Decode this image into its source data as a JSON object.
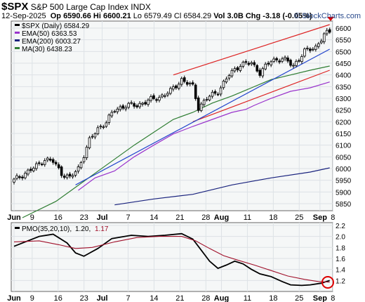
{
  "header": {
    "symbol": "$SPX",
    "name": "S&P 500 Large Cap Index",
    "exchange": "INDX",
    "date": "12-Sep-2025",
    "open": "Op 6590.66",
    "high": "Hi 6600.21",
    "low": "Lo 6579.49",
    "close": "Cl 6584.29",
    "volume": "Vol 3.0B",
    "change": "Chg -3.18 (-0.05%)",
    "copyright": "© StockCharts.com"
  },
  "chart_data": [
    {
      "type": "candlestick",
      "legend": [
        {
          "label": "$SPX (Daily) 6584.29",
          "color": "#000000"
        },
        {
          "label": "EMA(50) 6363.53",
          "color": "#9933cc"
        },
        {
          "label": "EMA(200) 6003.27",
          "color": "#1a237e"
        },
        {
          "label": "MA(30) 6438.23",
          "color": "#2e7d32"
        }
      ],
      "ylim": [
        5820,
        6630
      ],
      "yticks": [
        5850,
        5900,
        5950,
        6000,
        6050,
        6100,
        6150,
        6200,
        6250,
        6300,
        6350,
        6400,
        6450,
        6500,
        6550,
        6600
      ],
      "xticks": [
        "Jun",
        "9",
        "16",
        "23",
        "Jul",
        "7",
        "14",
        "21",
        "28",
        "Aug",
        "11",
        "18",
        "25",
        "Sep",
        "8"
      ],
      "last_value": 6584.29,
      "series": [
        {
          "name": "EMA(50)",
          "color": "#9933cc",
          "values": [
            [
              23,
              5907
            ],
            [
              29,
              5960
            ],
            [
              36,
              5990
            ],
            [
              43,
              6050
            ],
            [
              50,
              6100
            ],
            [
              57,
              6148
            ],
            [
              64,
              6180
            ],
            [
              71,
              6210
            ],
            [
              78,
              6240
            ],
            [
              83,
              6253
            ],
            [
              86,
              6270
            ],
            [
              92,
              6300
            ],
            [
              99,
              6330
            ],
            [
              106,
              6345
            ],
            [
              113,
              6370
            ]
          ]
        },
        {
          "name": "EMA(200)",
          "color": "#1a237e",
          "values": [
            [
              36,
              5845
            ],
            [
              50,
              5870
            ],
            [
              64,
              5890
            ],
            [
              78,
              5930
            ],
            [
              92,
              5960
            ],
            [
              106,
              5985
            ],
            [
              113,
              6003
            ]
          ]
        },
        {
          "name": "MA(30)",
          "color": "#2e7d32",
          "values": [
            [
              3,
              5790
            ],
            [
              15,
              5860
            ],
            [
              29,
              5980
            ],
            [
              43,
              6100
            ],
            [
              57,
              6210
            ],
            [
              64,
              6240
            ],
            [
              71,
              6280
            ],
            [
              78,
              6310
            ],
            [
              85,
              6345
            ],
            [
              92,
              6380
            ],
            [
              99,
              6400
            ],
            [
              106,
              6420
            ],
            [
              113,
              6438
            ]
          ]
        }
      ],
      "trendlines": [
        {
          "color": "#dd2222",
          "points": [
            [
              57,
              6400
            ],
            [
              113,
              6615
            ]
          ]
        },
        {
          "color": "#dd2222",
          "points": [
            [
              64,
              6200
            ],
            [
              113,
              6420
            ]
          ]
        },
        {
          "color": "#2244cc",
          "points": [
            [
              22,
              5930
            ],
            [
              113,
              6510
            ]
          ]
        }
      ]
    },
    {
      "type": "line",
      "legend": [
        {
          "label": "PMO(35,20,10)",
          "color": "#000000"
        },
        {
          "label": "1.20",
          "color": "#000000"
        },
        {
          "label": "1.17",
          "color": "#a0102a"
        }
      ],
      "ylim": [
        1.0,
        2.25
      ],
      "yticks": [
        1.2,
        1.4,
        1.6,
        1.8,
        2.0,
        2.2
      ],
      "xticks": [
        "Jun",
        "9",
        "16",
        "23",
        "Jul",
        "7",
        "14",
        "21",
        "28",
        "Aug",
        "11",
        "18",
        "25",
        "Sep",
        "8"
      ],
      "series": [
        {
          "name": "PMO",
          "color": "#000000",
          "values": [
            [
              0,
              1.82
            ],
            [
              4,
              1.9
            ],
            [
              9,
              2.0
            ],
            [
              14,
              2.04
            ],
            [
              19,
              1.88
            ],
            [
              22,
              1.7
            ],
            [
              25,
              1.64
            ],
            [
              30,
              1.78
            ],
            [
              35,
              1.96
            ],
            [
              42,
              2.02
            ],
            [
              48,
              2.0
            ],
            [
              54,
              2.02
            ],
            [
              60,
              2.05
            ],
            [
              64,
              1.95
            ],
            [
              67,
              1.75
            ],
            [
              70,
              1.55
            ],
            [
              73,
              1.42
            ],
            [
              76,
              1.48
            ],
            [
              79,
              1.55
            ],
            [
              82,
              1.5
            ],
            [
              85,
              1.4
            ],
            [
              88,
              1.32
            ],
            [
              92,
              1.27
            ],
            [
              96,
              1.18
            ],
            [
              99,
              1.12
            ],
            [
              103,
              1.11
            ],
            [
              106,
              1.12
            ],
            [
              110,
              1.15
            ],
            [
              113,
              1.2
            ]
          ]
        },
        {
          "name": "Signal",
          "color": "#a0102a",
          "values": [
            [
              0,
              1.9
            ],
            [
              9,
              1.92
            ],
            [
              16,
              1.85
            ],
            [
              22,
              1.78
            ],
            [
              28,
              1.8
            ],
            [
              36,
              1.9
            ],
            [
              44,
              1.98
            ],
            [
              52,
              2.0
            ],
            [
              60,
              2.0
            ],
            [
              65,
              1.92
            ],
            [
              70,
              1.78
            ],
            [
              75,
              1.65
            ],
            [
              80,
              1.57
            ],
            [
              86,
              1.48
            ],
            [
              92,
              1.38
            ],
            [
              98,
              1.28
            ],
            [
              104,
              1.22
            ],
            [
              109,
              1.18
            ],
            [
              113,
              1.17
            ]
          ]
        }
      ]
    }
  ]
}
